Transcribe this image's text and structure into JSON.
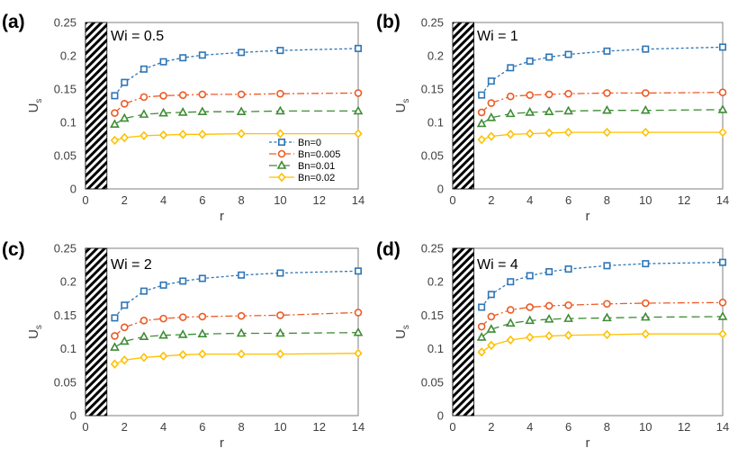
{
  "chart_data": [
    {
      "type": "line",
      "panel_label": "(a)",
      "annotation": "Wi = 0.5",
      "xlabel": "r",
      "ylabel": "U",
      "ylabel_subscript": "s",
      "xlim": [
        0,
        14
      ],
      "ylim": [
        0,
        0.25
      ],
      "xticks": [
        "0",
        "2",
        "4",
        "6",
        "8",
        "10",
        "12",
        "14"
      ],
      "yticks": [
        "0",
        "0.05",
        "0.1",
        "0.15",
        "0.2",
        "0.25"
      ],
      "x": [
        1.5,
        2,
        3,
        4,
        5,
        6,
        8,
        10,
        14
      ],
      "series": [
        {
          "name": "Bn=0",
          "values": [
            0.14,
            0.16,
            0.18,
            0.191,
            0.197,
            0.201,
            0.205,
            0.208,
            0.211
          ]
        },
        {
          "name": "Bn=0.005",
          "values": [
            0.114,
            0.128,
            0.138,
            0.14,
            0.141,
            0.142,
            0.142,
            0.143,
            0.144
          ]
        },
        {
          "name": "Bn=0.01",
          "values": [
            0.097,
            0.106,
            0.112,
            0.114,
            0.115,
            0.116,
            0.116,
            0.117,
            0.117
          ]
        },
        {
          "name": "Bn=0.02",
          "values": [
            0.073,
            0.077,
            0.08,
            0.081,
            0.082,
            0.082,
            0.083,
            0.083,
            0.083
          ]
        }
      ],
      "legend": "inside-right"
    },
    {
      "type": "line",
      "panel_label": "(b)",
      "annotation": "Wi = 1",
      "xlabel": "r",
      "ylabel": "U",
      "ylabel_subscript": "s",
      "xlim": [
        0,
        14
      ],
      "ylim": [
        0,
        0.25
      ],
      "xticks": [
        "0",
        "2",
        "4",
        "6",
        "8",
        "10",
        "12",
        "14"
      ],
      "yticks": [
        "0",
        "0.05",
        "0.1",
        "0.15",
        "0.2",
        "0.25"
      ],
      "x": [
        1.5,
        2,
        3,
        4,
        5,
        6,
        8,
        10,
        14
      ],
      "series": [
        {
          "name": "Bn=0",
          "values": [
            0.141,
            0.162,
            0.182,
            0.192,
            0.198,
            0.202,
            0.207,
            0.21,
            0.213
          ]
        },
        {
          "name": "Bn=0.005",
          "values": [
            0.115,
            0.129,
            0.139,
            0.141,
            0.142,
            0.143,
            0.144,
            0.144,
            0.145
          ]
        },
        {
          "name": "Bn=0.01",
          "values": [
            0.098,
            0.107,
            0.113,
            0.115,
            0.116,
            0.117,
            0.118,
            0.118,
            0.119
          ]
        },
        {
          "name": "Bn=0.02",
          "values": [
            0.074,
            0.079,
            0.082,
            0.083,
            0.084,
            0.085,
            0.085,
            0.085,
            0.085
          ]
        }
      ]
    },
    {
      "type": "line",
      "panel_label": "(c)",
      "annotation": "Wi = 2",
      "xlabel": "r",
      "ylabel": "U",
      "ylabel_subscript": "s",
      "xlim": [
        0,
        14
      ],
      "ylim": [
        0,
        0.25
      ],
      "xticks": [
        "0",
        "2",
        "4",
        "6",
        "8",
        "10",
        "12",
        "14"
      ],
      "yticks": [
        "0",
        "0.05",
        "0.1",
        "0.15",
        "0.2",
        "0.25"
      ],
      "x": [
        1.5,
        2,
        3,
        4,
        5,
        6,
        8,
        10,
        14
      ],
      "series": [
        {
          "name": "Bn=0",
          "values": [
            0.146,
            0.165,
            0.186,
            0.195,
            0.201,
            0.205,
            0.21,
            0.213,
            0.216
          ]
        },
        {
          "name": "Bn=0.005",
          "values": [
            0.119,
            0.132,
            0.142,
            0.145,
            0.147,
            0.148,
            0.149,
            0.15,
            0.154
          ]
        },
        {
          "name": "Bn=0.01",
          "values": [
            0.102,
            0.111,
            0.118,
            0.12,
            0.121,
            0.122,
            0.123,
            0.123,
            0.124
          ]
        },
        {
          "name": "Bn=0.02",
          "values": [
            0.077,
            0.083,
            0.087,
            0.089,
            0.091,
            0.092,
            0.092,
            0.092,
            0.093
          ]
        }
      ]
    },
    {
      "type": "line",
      "panel_label": "(d)",
      "annotation": "Wi = 4",
      "xlabel": "r",
      "ylabel": "U",
      "ylabel_subscript": "s",
      "xlim": [
        0,
        14
      ],
      "ylim": [
        0,
        0.25
      ],
      "xticks": [
        "0",
        "2",
        "4",
        "6",
        "8",
        "10",
        "12",
        "14"
      ],
      "yticks": [
        "0",
        "0.05",
        "0.1",
        "0.15",
        "0.2",
        "0.25"
      ],
      "x": [
        1.5,
        2,
        3,
        4,
        5,
        6,
        8,
        10,
        14
      ],
      "series": [
        {
          "name": "Bn=0",
          "values": [
            0.162,
            0.181,
            0.2,
            0.209,
            0.215,
            0.219,
            0.224,
            0.227,
            0.229
          ]
        },
        {
          "name": "Bn=0.005",
          "values": [
            0.133,
            0.148,
            0.158,
            0.162,
            0.164,
            0.165,
            0.167,
            0.168,
            0.169
          ]
        },
        {
          "name": "Bn=0.01",
          "values": [
            0.117,
            0.129,
            0.138,
            0.142,
            0.144,
            0.145,
            0.146,
            0.147,
            0.148
          ]
        },
        {
          "name": "Bn=0.02",
          "values": [
            0.095,
            0.105,
            0.113,
            0.117,
            0.119,
            0.12,
            0.121,
            0.122,
            0.122
          ]
        }
      ]
    }
  ],
  "series_styles": [
    {
      "color": "#2E75B6",
      "marker": "square",
      "dash": "3,2.5"
    },
    {
      "color": "#ED5A24",
      "marker": "circle",
      "dash": "8,3,2,3"
    },
    {
      "color": "#3F8C35",
      "marker": "triangle",
      "dash": "9,5"
    },
    {
      "color": "#FFC000",
      "marker": "diamond",
      "dash": ""
    }
  ]
}
